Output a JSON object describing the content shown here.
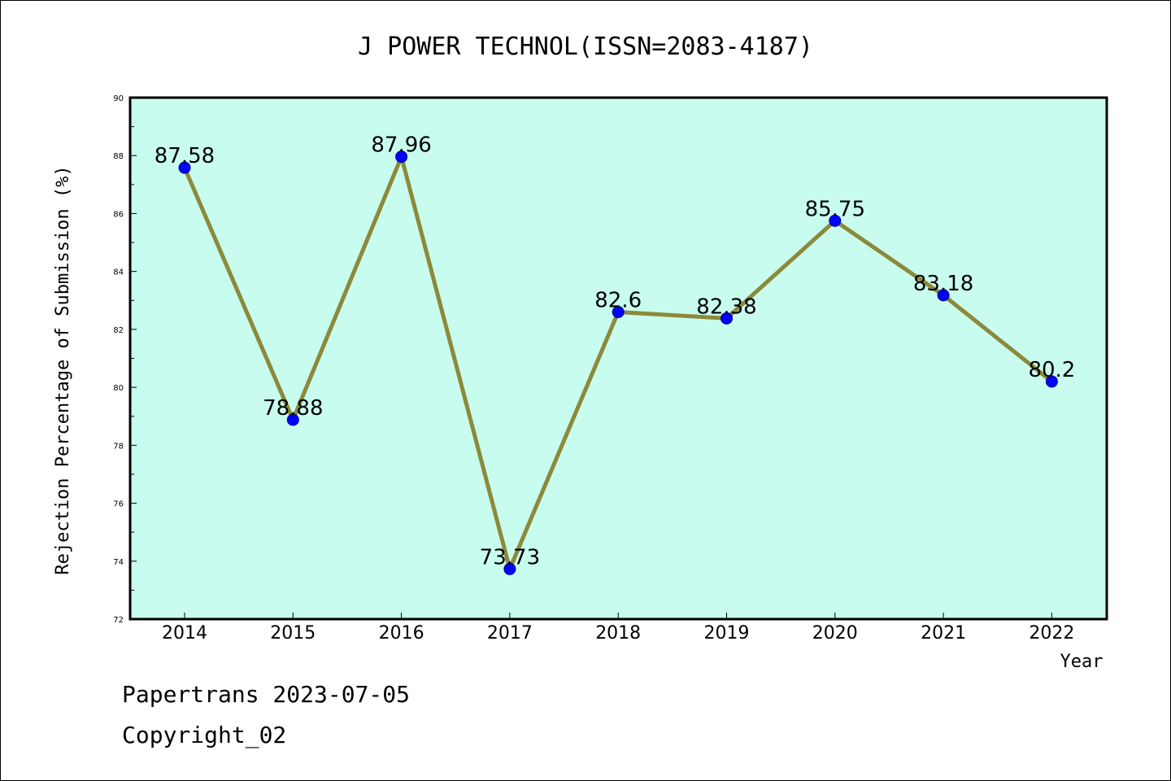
{
  "chart_data": {
    "type": "line",
    "title": "J POWER TECHNOL(ISSN=2083-4187)",
    "xlabel": "Year",
    "ylabel": "Rejection Percentage of Submission (%)",
    "categories": [
      "2014",
      "2015",
      "2016",
      "2017",
      "2018",
      "2019",
      "2020",
      "2021",
      "2022"
    ],
    "series": [
      {
        "values": [
          87.58,
          78.88,
          87.96,
          73.73,
          82.6,
          82.38,
          85.75,
          83.18,
          80.2
        ],
        "labels": [
          "87.58",
          "78.88",
          "87.96",
          "73.73",
          "82.6",
          "82.38",
          "85.75",
          "83.18",
          "80.2"
        ]
      }
    ],
    "ylim": [
      72,
      90
    ],
    "yticks": [
      "72",
      "74",
      "76",
      "78",
      "80",
      "82",
      "84",
      "86",
      "88",
      "90"
    ],
    "grid": false,
    "colors": {
      "line": "#8b8a3a",
      "marker": "#0000ff",
      "plot_bg": "#c8fcee"
    }
  },
  "footer": {
    "line1": "Papertrans 2023-07-05",
    "line2": "Copyright_02"
  }
}
